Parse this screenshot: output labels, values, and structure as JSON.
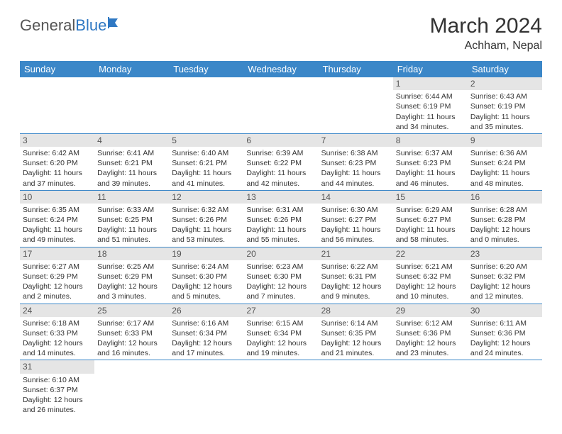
{
  "logo": {
    "general": "General",
    "blue": "Blue"
  },
  "title": "March 2024",
  "location": "Achham, Nepal",
  "colors": {
    "header_bg": "#3b87c8",
    "header_text": "#ffffff",
    "daynum_bg": "#e5e5e5",
    "row_border": "#3b87c8",
    "logo_blue": "#2f78c3"
  },
  "weekdays": [
    "Sunday",
    "Monday",
    "Tuesday",
    "Wednesday",
    "Thursday",
    "Friday",
    "Saturday"
  ],
  "weeks": [
    [
      {
        "empty": true
      },
      {
        "empty": true
      },
      {
        "empty": true
      },
      {
        "empty": true
      },
      {
        "empty": true
      },
      {
        "n": "1",
        "sunrise": "Sunrise: 6:44 AM",
        "sunset": "Sunset: 6:19 PM",
        "daylight": "Daylight: 11 hours and 34 minutes."
      },
      {
        "n": "2",
        "sunrise": "Sunrise: 6:43 AM",
        "sunset": "Sunset: 6:19 PM",
        "daylight": "Daylight: 11 hours and 35 minutes."
      }
    ],
    [
      {
        "n": "3",
        "sunrise": "Sunrise: 6:42 AM",
        "sunset": "Sunset: 6:20 PM",
        "daylight": "Daylight: 11 hours and 37 minutes."
      },
      {
        "n": "4",
        "sunrise": "Sunrise: 6:41 AM",
        "sunset": "Sunset: 6:21 PM",
        "daylight": "Daylight: 11 hours and 39 minutes."
      },
      {
        "n": "5",
        "sunrise": "Sunrise: 6:40 AM",
        "sunset": "Sunset: 6:21 PM",
        "daylight": "Daylight: 11 hours and 41 minutes."
      },
      {
        "n": "6",
        "sunrise": "Sunrise: 6:39 AM",
        "sunset": "Sunset: 6:22 PM",
        "daylight": "Daylight: 11 hours and 42 minutes."
      },
      {
        "n": "7",
        "sunrise": "Sunrise: 6:38 AM",
        "sunset": "Sunset: 6:23 PM",
        "daylight": "Daylight: 11 hours and 44 minutes."
      },
      {
        "n": "8",
        "sunrise": "Sunrise: 6:37 AM",
        "sunset": "Sunset: 6:23 PM",
        "daylight": "Daylight: 11 hours and 46 minutes."
      },
      {
        "n": "9",
        "sunrise": "Sunrise: 6:36 AM",
        "sunset": "Sunset: 6:24 PM",
        "daylight": "Daylight: 11 hours and 48 minutes."
      }
    ],
    [
      {
        "n": "10",
        "sunrise": "Sunrise: 6:35 AM",
        "sunset": "Sunset: 6:24 PM",
        "daylight": "Daylight: 11 hours and 49 minutes."
      },
      {
        "n": "11",
        "sunrise": "Sunrise: 6:33 AM",
        "sunset": "Sunset: 6:25 PM",
        "daylight": "Daylight: 11 hours and 51 minutes."
      },
      {
        "n": "12",
        "sunrise": "Sunrise: 6:32 AM",
        "sunset": "Sunset: 6:26 PM",
        "daylight": "Daylight: 11 hours and 53 minutes."
      },
      {
        "n": "13",
        "sunrise": "Sunrise: 6:31 AM",
        "sunset": "Sunset: 6:26 PM",
        "daylight": "Daylight: 11 hours and 55 minutes."
      },
      {
        "n": "14",
        "sunrise": "Sunrise: 6:30 AM",
        "sunset": "Sunset: 6:27 PM",
        "daylight": "Daylight: 11 hours and 56 minutes."
      },
      {
        "n": "15",
        "sunrise": "Sunrise: 6:29 AM",
        "sunset": "Sunset: 6:27 PM",
        "daylight": "Daylight: 11 hours and 58 minutes."
      },
      {
        "n": "16",
        "sunrise": "Sunrise: 6:28 AM",
        "sunset": "Sunset: 6:28 PM",
        "daylight": "Daylight: 12 hours and 0 minutes."
      }
    ],
    [
      {
        "n": "17",
        "sunrise": "Sunrise: 6:27 AM",
        "sunset": "Sunset: 6:29 PM",
        "daylight": "Daylight: 12 hours and 2 minutes."
      },
      {
        "n": "18",
        "sunrise": "Sunrise: 6:25 AM",
        "sunset": "Sunset: 6:29 PM",
        "daylight": "Daylight: 12 hours and 3 minutes."
      },
      {
        "n": "19",
        "sunrise": "Sunrise: 6:24 AM",
        "sunset": "Sunset: 6:30 PM",
        "daylight": "Daylight: 12 hours and 5 minutes."
      },
      {
        "n": "20",
        "sunrise": "Sunrise: 6:23 AM",
        "sunset": "Sunset: 6:30 PM",
        "daylight": "Daylight: 12 hours and 7 minutes."
      },
      {
        "n": "21",
        "sunrise": "Sunrise: 6:22 AM",
        "sunset": "Sunset: 6:31 PM",
        "daylight": "Daylight: 12 hours and 9 minutes."
      },
      {
        "n": "22",
        "sunrise": "Sunrise: 6:21 AM",
        "sunset": "Sunset: 6:32 PM",
        "daylight": "Daylight: 12 hours and 10 minutes."
      },
      {
        "n": "23",
        "sunrise": "Sunrise: 6:20 AM",
        "sunset": "Sunset: 6:32 PM",
        "daylight": "Daylight: 12 hours and 12 minutes."
      }
    ],
    [
      {
        "n": "24",
        "sunrise": "Sunrise: 6:18 AM",
        "sunset": "Sunset: 6:33 PM",
        "daylight": "Daylight: 12 hours and 14 minutes."
      },
      {
        "n": "25",
        "sunrise": "Sunrise: 6:17 AM",
        "sunset": "Sunset: 6:33 PM",
        "daylight": "Daylight: 12 hours and 16 minutes."
      },
      {
        "n": "26",
        "sunrise": "Sunrise: 6:16 AM",
        "sunset": "Sunset: 6:34 PM",
        "daylight": "Daylight: 12 hours and 17 minutes."
      },
      {
        "n": "27",
        "sunrise": "Sunrise: 6:15 AM",
        "sunset": "Sunset: 6:34 PM",
        "daylight": "Daylight: 12 hours and 19 minutes."
      },
      {
        "n": "28",
        "sunrise": "Sunrise: 6:14 AM",
        "sunset": "Sunset: 6:35 PM",
        "daylight": "Daylight: 12 hours and 21 minutes."
      },
      {
        "n": "29",
        "sunrise": "Sunrise: 6:12 AM",
        "sunset": "Sunset: 6:36 PM",
        "daylight": "Daylight: 12 hours and 23 minutes."
      },
      {
        "n": "30",
        "sunrise": "Sunrise: 6:11 AM",
        "sunset": "Sunset: 6:36 PM",
        "daylight": "Daylight: 12 hours and 24 minutes."
      }
    ],
    [
      {
        "n": "31",
        "sunrise": "Sunrise: 6:10 AM",
        "sunset": "Sunset: 6:37 PM",
        "daylight": "Daylight: 12 hours and 26 minutes."
      },
      {
        "empty": true
      },
      {
        "empty": true
      },
      {
        "empty": true
      },
      {
        "empty": true
      },
      {
        "empty": true
      },
      {
        "empty": true
      }
    ]
  ]
}
